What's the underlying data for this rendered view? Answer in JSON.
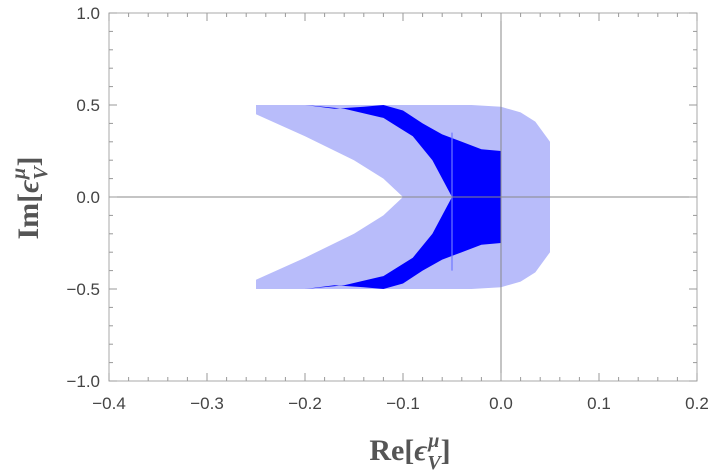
{
  "chart_data": {
    "type": "area",
    "title": "",
    "xlabel": {
      "prefix": "Re[",
      "symbol": "ϵ",
      "sup": "μ",
      "sub": "V",
      "suffix": "]"
    },
    "ylabel": {
      "prefix": "Im[",
      "symbol": "ϵ",
      "sup": "μ",
      "sub": "V",
      "suffix": "]"
    },
    "xlim": [
      -0.4,
      0.2
    ],
    "ylim": [
      -1.0,
      1.0
    ],
    "xticks": [
      -0.4,
      -0.3,
      -0.2,
      -0.1,
      0.0,
      0.1,
      0.2
    ],
    "xtick_labels": [
      "−0.4",
      "−0.3",
      "−0.2",
      "−0.1",
      "0.0",
      "0.1",
      "0.2"
    ],
    "yticks": [
      -1.0,
      -0.5,
      0.0,
      0.5,
      1.0
    ],
    "ytick_labels": [
      "−1.0",
      "−0.5",
      "0.0",
      "0.5",
      "1.0"
    ],
    "reference_lines": {
      "x": 0.0,
      "y": 0.0
    },
    "colors": {
      "light_region": "#b8bcfa",
      "dark_region": "#0000ff",
      "frame": "#aaaaaa",
      "axes_lines": "#888888"
    },
    "series": [
      {
        "color": "#b8bcfa",
        "points": [
          [
            -0.25,
            0.5
          ],
          [
            -0.06,
            0.5
          ],
          [
            -0.03,
            0.5
          ],
          [
            0.0,
            0.49
          ],
          [
            0.02,
            0.46
          ],
          [
            0.035,
            0.41
          ],
          [
            0.05,
            0.3
          ],
          [
            0.05,
            -0.3
          ],
          [
            0.035,
            -0.41
          ],
          [
            0.02,
            -0.46
          ],
          [
            0.0,
            -0.49
          ],
          [
            -0.03,
            -0.5
          ],
          [
            -0.06,
            -0.5
          ],
          [
            -0.25,
            -0.5
          ],
          [
            -0.25,
            -0.45
          ],
          [
            -0.2,
            -0.33
          ],
          [
            -0.15,
            -0.2
          ],
          [
            -0.12,
            -0.1
          ],
          [
            -0.1,
            0.0
          ],
          [
            -0.12,
            0.1
          ],
          [
            -0.15,
            0.2
          ],
          [
            -0.2,
            0.33
          ],
          [
            -0.25,
            0.45
          ]
        ]
      },
      {
        "color": "#0000ff",
        "points": [
          [
            -0.2,
            0.5
          ],
          [
            -0.17,
            0.48
          ],
          [
            -0.14,
            0.49
          ],
          [
            -0.12,
            0.5
          ],
          [
            -0.1,
            0.47
          ],
          [
            -0.08,
            0.4
          ],
          [
            -0.06,
            0.34
          ],
          [
            -0.04,
            0.3
          ],
          [
            -0.02,
            0.26
          ],
          [
            0.0,
            0.25
          ],
          [
            0.0,
            -0.25
          ],
          [
            -0.02,
            -0.26
          ],
          [
            -0.04,
            -0.3
          ],
          [
            -0.06,
            -0.34
          ],
          [
            -0.08,
            -0.4
          ],
          [
            -0.1,
            -0.47
          ],
          [
            -0.12,
            -0.5
          ],
          [
            -0.14,
            -0.49
          ],
          [
            -0.17,
            -0.48
          ],
          [
            -0.2,
            -0.5
          ],
          [
            -0.16,
            -0.48
          ],
          [
            -0.12,
            -0.43
          ],
          [
            -0.09,
            -0.33
          ],
          [
            -0.07,
            -0.2
          ],
          [
            -0.05,
            0.0
          ],
          [
            -0.07,
            0.2
          ],
          [
            -0.09,
            0.33
          ],
          [
            -0.12,
            0.43
          ],
          [
            -0.16,
            0.48
          ]
        ]
      }
    ],
    "segment": {
      "x": -0.05,
      "y": [
        -0.4,
        0.35
      ]
    }
  }
}
